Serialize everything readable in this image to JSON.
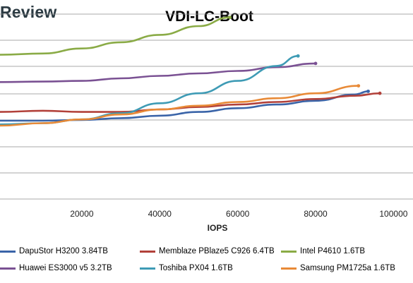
{
  "brand": "Review",
  "chart_data": {
    "type": "line",
    "title": "VDI-LC-Boot",
    "xlabel": "IOPS",
    "ylabel": "",
    "xlim": [
      -1000,
      105000
    ],
    "ylim": [
      0,
      8
    ],
    "x_ticks": [
      20000,
      40000,
      60000,
      80000,
      100000
    ],
    "x_tick_labels": [
      "20000",
      "40000",
      "60000",
      "80000",
      "100000"
    ],
    "grid": "horizontal",
    "legend_position": "bottom",
    "series": [
      {
        "name": "DapuStor H3200 3.84TB",
        "color": "#3a64a8",
        "x": [
          -1000,
          10000,
          20000,
          30000,
          40000,
          50000,
          60000,
          70000,
          80000,
          90000,
          93500
        ],
        "y": [
          3.15,
          3.15,
          3.18,
          3.25,
          3.35,
          3.5,
          3.65,
          3.8,
          3.95,
          4.2,
          4.33
        ]
      },
      {
        "name": "Memblaze PBlaze5 C926 6.4TB",
        "color": "#b2413a",
        "x": [
          -1000,
          10000,
          20000,
          30000,
          40000,
          50000,
          60000,
          70000,
          80000,
          90000,
          96500
        ],
        "y": [
          3.5,
          3.55,
          3.5,
          3.5,
          3.6,
          3.7,
          3.8,
          3.9,
          4.02,
          4.15,
          4.25
        ]
      },
      {
        "name": "Intel P4610 1.6TB",
        "color": "#8aab46",
        "x": [
          -1000,
          10000,
          20000,
          30000,
          40000,
          50000,
          58000
        ],
        "y": [
          5.8,
          5.85,
          6.05,
          6.3,
          6.6,
          6.95,
          7.3
        ]
      },
      {
        "name": "Huawei ES3000 v5 3.2TB",
        "color": "#7a5193",
        "x": [
          -1000,
          10000,
          20000,
          30000,
          40000,
          50000,
          60000,
          70000,
          80000
        ],
        "y": [
          4.7,
          4.72,
          4.75,
          4.85,
          4.95,
          5.05,
          5.15,
          5.3,
          5.45
        ]
      },
      {
        "name": "Toshiba PX04 1.6TB",
        "color": "#3e9bb5",
        "x": [
          -1000,
          10000,
          20000,
          30000,
          40000,
          50000,
          60000,
          70000,
          75500
        ],
        "y": [
          3.0,
          3.05,
          3.2,
          3.45,
          3.85,
          4.25,
          4.75,
          5.35,
          5.75
        ]
      },
      {
        "name": "Samsung PM1725a 1.6TB",
        "color": "#e88a37",
        "x": [
          -1000,
          10000,
          20000,
          30000,
          40000,
          50000,
          60000,
          70000,
          80000,
          91000
        ],
        "y": [
          2.95,
          3.05,
          3.2,
          3.4,
          3.6,
          3.75,
          3.9,
          4.05,
          4.25,
          4.55
        ]
      }
    ]
  }
}
